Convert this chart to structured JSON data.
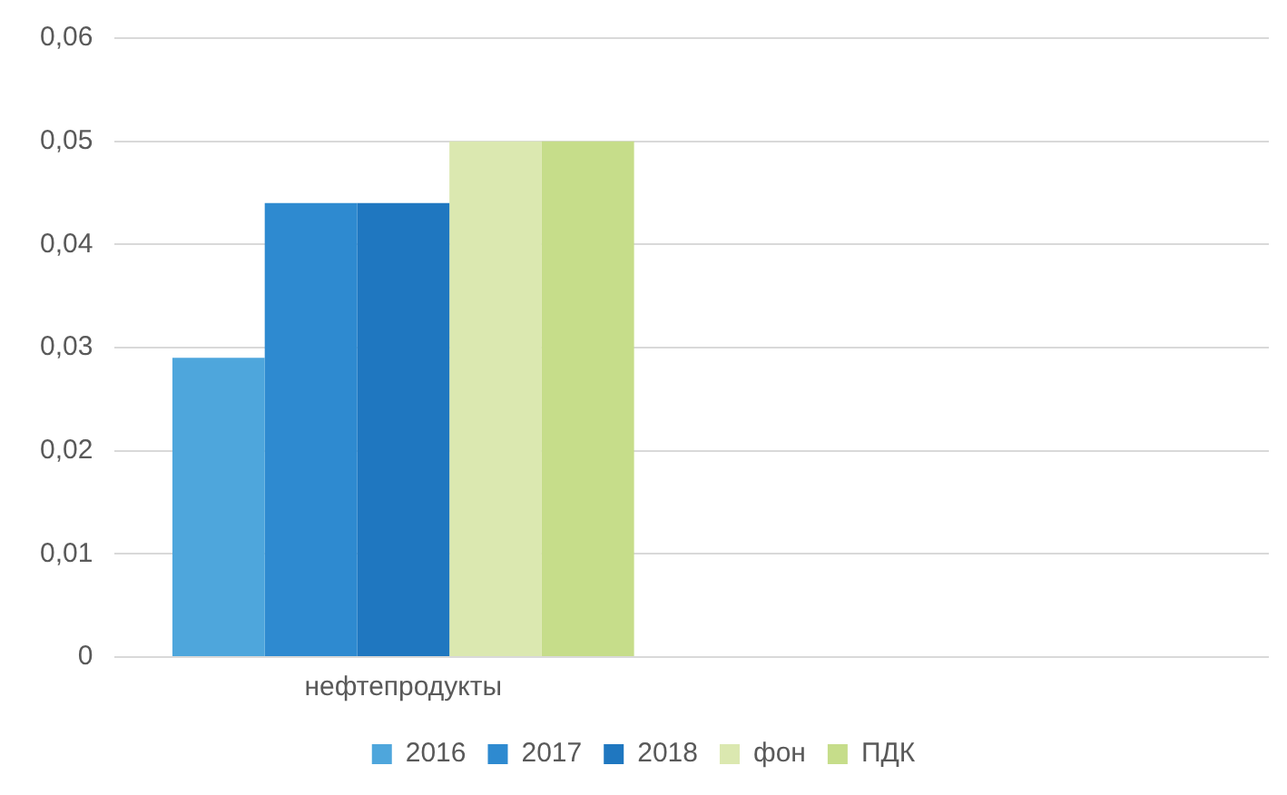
{
  "chart_data": {
    "type": "bar",
    "categories": [
      "нефтепродукты",
      null
    ],
    "series": [
      {
        "name": "2016",
        "color": "#4ea6dc",
        "values": [
          0.029,
          null
        ]
      },
      {
        "name": "2017",
        "color": "#2e8ad0",
        "values": [
          0.044,
          null
        ]
      },
      {
        "name": "2018",
        "color": "#1f77c0",
        "values": [
          0.044,
          null
        ]
      },
      {
        "name": "фон",
        "color": "#dbe8b0",
        "values": [
          0.05,
          null
        ]
      },
      {
        "name": "ПДК",
        "color": "#c6dd8a",
        "values": [
          0.05,
          null
        ]
      }
    ],
    "ylim": [
      0,
      0.06
    ],
    "yticks": [
      0,
      {
        "value": 0.01,
        "label": "0,01"
      },
      {
        "value": 0.02,
        "label": "0,02"
      },
      {
        "value": 0.03,
        "label": "0,03"
      },
      {
        "value": 0.04,
        "label": "0,04"
      },
      {
        "value": 0.05,
        "label": "0,05"
      },
      {
        "value": 0.06,
        "label": "0,06"
      }
    ],
    "grid": "y",
    "legend": "bottom"
  }
}
